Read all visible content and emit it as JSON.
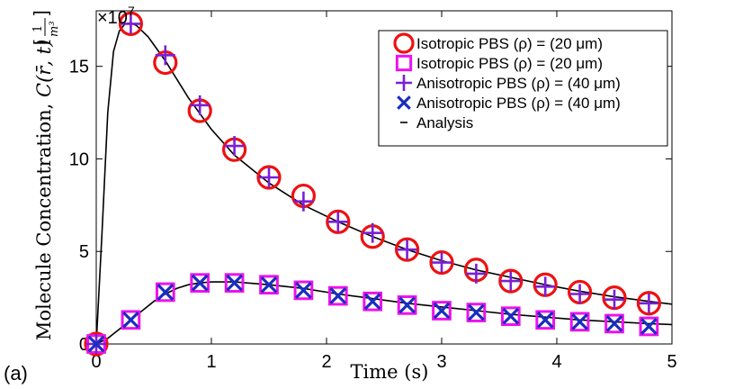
{
  "panel_label": "(a)",
  "chart_data": {
    "type": "scatter",
    "title": "",
    "xlabel": "Time (s)",
    "ylabel": "Molecule Concentration, C(r̄, t) [1/m³]",
    "ylabel_main": "Molecule Concentration, ",
    "ylabel_expr": "C(r̄, t)",
    "ylabel_unit_num": "1",
    "ylabel_unit_den": "m³",
    "y_multiplier": "×10",
    "y_multiplier_exp": "7",
    "xlim": [
      0,
      5
    ],
    "ylim": [
      0,
      18
    ],
    "xticks": [
      0,
      1,
      2,
      3,
      4,
      5
    ],
    "yticks": [
      0,
      5,
      10,
      15
    ],
    "grid": false,
    "legend_position": "top-right",
    "x": [
      0,
      0.3,
      0.6,
      0.9,
      1.2,
      1.5,
      1.8,
      2.1,
      2.4,
      2.7,
      3.0,
      3.3,
      3.6,
      3.9,
      4.2,
      4.5,
      4.8
    ],
    "series": [
      {
        "name": "Isotropic PBS (ρ) = (20 μm)",
        "marker": "circle",
        "color": "#ee1111",
        "values": [
          0,
          17.3,
          15.2,
          12.6,
          10.5,
          9.0,
          8.0,
          6.6,
          5.8,
          5.1,
          4.4,
          4.0,
          3.4,
          3.2,
          2.8,
          2.5,
          2.2
        ]
      },
      {
        "name": "Isotropic PBS (ρ) = (20 μm)",
        "marker": "square",
        "color": "#ee11ee",
        "values": [
          0,
          1.3,
          2.8,
          3.3,
          3.3,
          3.2,
          2.9,
          2.6,
          2.3,
          2.1,
          1.8,
          1.7,
          1.5,
          1.3,
          1.2,
          1.1,
          0.95
        ]
      },
      {
        "name": "Anisotropic PBS (ρ) = (40 μm)",
        "marker": "plus",
        "color": "#7a1fd6",
        "values": [
          0,
          17.3,
          15.6,
          12.9,
          10.7,
          9.0,
          7.7,
          6.6,
          6.0,
          5.1,
          4.4,
          3.8,
          3.4,
          3.1,
          2.7,
          2.4,
          2.2
        ]
      },
      {
        "name": "Anisotropic PBS (ρ) = (40 μm)",
        "marker": "x",
        "color": "#1a2dbf",
        "values": [
          0,
          1.3,
          2.8,
          3.3,
          3.3,
          3.2,
          2.9,
          2.6,
          2.3,
          2.1,
          1.8,
          1.7,
          1.5,
          1.3,
          1.2,
          1.1,
          0.95
        ]
      },
      {
        "name": "Analysis",
        "marker": "line",
        "color": "#000000",
        "curves": [
          {
            "x": [
              0,
              0.05,
              0.1,
              0.15,
              0.2,
              0.25,
              0.3,
              0.35,
              0.45,
              0.6,
              0.8,
              1.0,
              1.2,
              1.5,
              1.8,
              2.1,
              2.4,
              2.7,
              3.0,
              3.3,
              3.6,
              3.9,
              4.2,
              4.5,
              4.8,
              5.0
            ],
            "y": [
              0,
              6.0,
              12.5,
              15.8,
              16.9,
              17.3,
              17.35,
              17.2,
              16.6,
              15.3,
              13.3,
              11.6,
              10.2,
              8.7,
              7.5,
              6.6,
              5.8,
              5.1,
              4.5,
              4.0,
              3.6,
              3.2,
              2.85,
              2.55,
              2.3,
              2.15
            ]
          },
          {
            "x": [
              0,
              0.1,
              0.2,
              0.3,
              0.4,
              0.5,
              0.6,
              0.7,
              0.8,
              0.9,
              1.0,
              1.2,
              1.5,
              1.8,
              2.1,
              2.4,
              2.7,
              3.0,
              3.3,
              3.6,
              3.9,
              4.2,
              4.5,
              4.8,
              5.0
            ],
            "y": [
              0,
              0.3,
              0.8,
              1.3,
              1.8,
              2.3,
              2.7,
              3.0,
              3.2,
              3.3,
              3.35,
              3.35,
              3.2,
              3.0,
              2.7,
              2.45,
              2.2,
              2.0,
              1.8,
              1.6,
              1.45,
              1.3,
              1.2,
              1.1,
              1.05
            ]
          }
        ]
      }
    ],
    "legend": [
      {
        "marker": "circle",
        "color": "#ee1111",
        "label": "Isotropic PBS (ρ) = (20 μm)"
      },
      {
        "marker": "square",
        "color": "#ee11ee",
        "label": "Isotropic PBS (ρ) = (20 μm)"
      },
      {
        "marker": "plus",
        "color": "#7a1fd6",
        "label": "Anisotropic PBS (ρ) = (40 μm)"
      },
      {
        "marker": "x",
        "color": "#1a2dbf",
        "label": "Anisotropic PBS (ρ) = (40 μm)"
      },
      {
        "marker": "line",
        "color": "#000000",
        "label": "Analysis"
      }
    ]
  }
}
